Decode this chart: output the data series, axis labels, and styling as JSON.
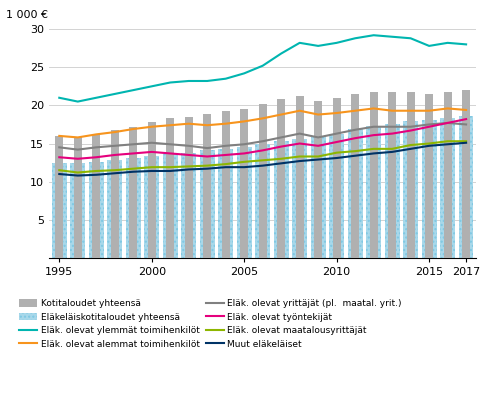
{
  "years": [
    1995,
    1996,
    1997,
    1998,
    1999,
    2000,
    2001,
    2002,
    2003,
    2004,
    2005,
    2006,
    2007,
    2008,
    2009,
    2010,
    2011,
    2012,
    2013,
    2014,
    2015,
    2016,
    2017
  ],
  "kotitaloudet_bar": [
    16.0,
    15.8,
    16.3,
    16.8,
    17.2,
    17.8,
    18.3,
    18.5,
    18.9,
    19.2,
    19.5,
    20.2,
    20.8,
    21.2,
    20.6,
    21.0,
    21.5,
    21.7,
    21.7,
    21.8,
    21.5,
    21.7,
    22.0
  ],
  "elakelaiskotitaloudet_bar": [
    12.5,
    12.4,
    12.6,
    12.9,
    13.1,
    13.3,
    13.6,
    13.8,
    14.1,
    14.3,
    14.6,
    14.9,
    15.3,
    15.6,
    15.9,
    16.3,
    16.9,
    17.3,
    17.6,
    17.9,
    18.1,
    18.3,
    18.6
  ],
  "ylemmat_toimihenkilo": [
    21.0,
    20.5,
    21.0,
    21.5,
    22.0,
    22.5,
    23.0,
    23.2,
    23.2,
    23.5,
    24.2,
    25.2,
    26.8,
    28.2,
    27.8,
    28.2,
    28.8,
    29.2,
    29.0,
    28.8,
    27.8,
    28.2,
    28.0
  ],
  "alemmat_toimihenkilo": [
    16.0,
    15.8,
    16.2,
    16.5,
    16.9,
    17.2,
    17.4,
    17.6,
    17.4,
    17.6,
    17.9,
    18.3,
    18.8,
    19.3,
    18.8,
    19.0,
    19.3,
    19.6,
    19.3,
    19.3,
    19.3,
    19.6,
    19.4
  ],
  "yrittajat": [
    14.5,
    14.2,
    14.5,
    14.7,
    14.9,
    15.1,
    14.9,
    14.7,
    14.4,
    14.7,
    14.9,
    15.3,
    15.8,
    16.3,
    15.8,
    16.3,
    16.8,
    17.2,
    17.2,
    17.2,
    17.5,
    17.7,
    17.5
  ],
  "tyontekijat": [
    13.2,
    13.0,
    13.2,
    13.5,
    13.7,
    13.9,
    13.7,
    13.5,
    13.3,
    13.5,
    13.7,
    14.1,
    14.6,
    15.0,
    14.7,
    15.2,
    15.7,
    16.1,
    16.3,
    16.7,
    17.2,
    17.7,
    18.2
  ],
  "maatalousyrittajat": [
    11.5,
    11.2,
    11.4,
    11.5,
    11.7,
    11.9,
    11.9,
    12.0,
    12.1,
    12.3,
    12.6,
    12.8,
    13.0,
    13.3,
    13.3,
    13.8,
    14.0,
    14.3,
    14.3,
    14.8,
    15.0,
    15.3,
    15.3
  ],
  "muut_elakelaset": [
    11.0,
    10.8,
    10.9,
    11.1,
    11.3,
    11.4,
    11.4,
    11.6,
    11.7,
    11.9,
    11.9,
    12.1,
    12.4,
    12.7,
    12.9,
    13.1,
    13.4,
    13.7,
    13.9,
    14.3,
    14.7,
    14.9,
    15.1
  ],
  "color_bar_gray": "#b0b0b0",
  "color_bar_blue_fill": "#a8d8ea",
  "color_bar_blue_dot": "#7ec8e3",
  "color_ylemmat": "#00b5b0",
  "color_alemmat": "#f7941d",
  "color_yrittajat": "#808080",
  "color_tyontekijat": "#e5007d",
  "color_maatalous": "#8db600",
  "color_muut": "#003366",
  "ylabel": "1 000 €",
  "ylim_min": 0,
  "ylim_max": 30,
  "yticks": [
    0,
    5,
    10,
    15,
    20,
    25,
    30
  ],
  "xtick_years": [
    1995,
    2000,
    2005,
    2010,
    2015,
    2017
  ],
  "legend_labels": [
    "Kotitaloudet yhteensä",
    "Eläkeläiskotitaloudet yhteensä",
    "Eläk. olevat ylemmät toimihenkilöt",
    "Eläk. olevat alemmat toimihenkilöt",
    "Eläk. olevat yrittäjät (pl.  maatal. yrit.)",
    "Eläk. olevat työntekijät",
    "Eläk. olevat maatalousyrittäjät",
    "Muut eläkeläiset"
  ]
}
